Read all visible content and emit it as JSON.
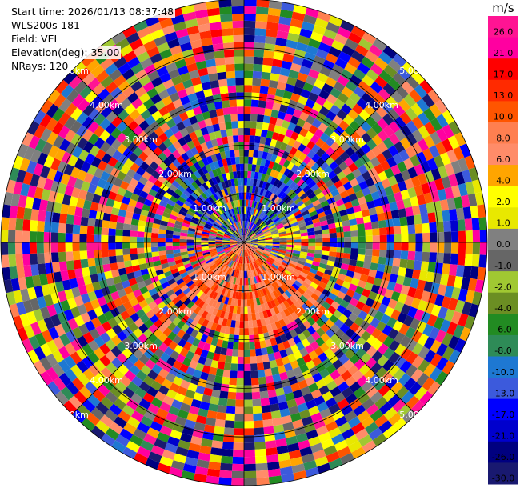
{
  "info": {
    "start_time": "Start time: 2026/01/13 08:37:48",
    "instrument": "WLS200s-181",
    "field": "Field: VEL",
    "elevation": "Elevation(deg): 35.00",
    "nrays": "NRays: 120"
  },
  "chart_data": {
    "type": "heatmap",
    "projection": "polar",
    "field": "VEL",
    "units": "m/s",
    "nrays": 120,
    "elevation_deg": 35.0,
    "max_range_km": 5.0,
    "range_rings_km": [
      1.0,
      2.0,
      3.0,
      4.0,
      5.0
    ],
    "ring_labels": [
      "1.00km",
      "2.00km",
      "3.00km",
      "4.00km",
      "5.00km"
    ],
    "colorbar": {
      "unit": "m/s",
      "ticks": [
        "26.0",
        "21.0",
        "17.0",
        "13.0",
        "10.0",
        "8.0",
        "6.0",
        "4.0",
        "2.0",
        "1.0",
        "0.0",
        "-1.0",
        "-2.0",
        "-4.0",
        "-6.0",
        "-8.0",
        "-10.0",
        "-13.0",
        "-17.0",
        "-21.0",
        "-26.0",
        "-30.0"
      ],
      "colors": [
        "#ff1493",
        "#ff00a0",
        "#ff0000",
        "#ff2a00",
        "#ff5500",
        "#ff7f50",
        "#ff8c69",
        "#ffa500",
        "#ffff00",
        "#e8e800",
        "#808080",
        "#666666",
        "#a0c832",
        "#6b8e23",
        "#228b22",
        "#2e8b57",
        "#1e78d2",
        "#3c5adc",
        "#0000ff",
        "#0000cd",
        "#000080",
        "#191970"
      ]
    }
  }
}
